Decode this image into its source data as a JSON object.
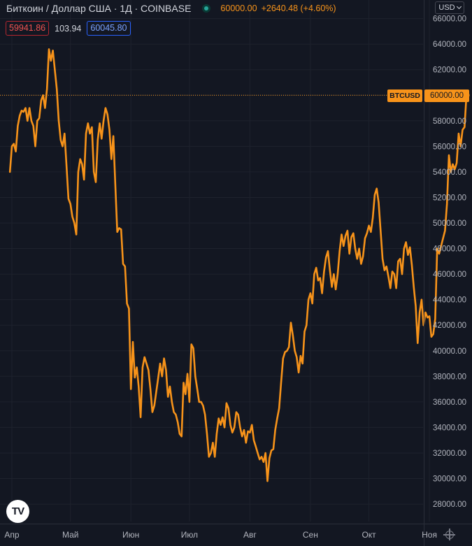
{
  "header": {
    "symbol_title": "Биткоин / Доллар США · 1Д · COINBASE",
    "last_price": "60000.00",
    "change": "+2640.48 (+4.60%)"
  },
  "indicators": {
    "bid": "59941.86",
    "spread": "103.94",
    "ask": "60045.80"
  },
  "controls": {
    "currency": "USD"
  },
  "price_tag": {
    "symbol": "BTCUSD",
    "price": "60000.00"
  },
  "brand": {
    "logo_text": "TV"
  },
  "colors": {
    "background": "#131722",
    "grid": "#1e222d",
    "line": "#f7931a",
    "axis_text": "#b2b5be"
  },
  "chart_data": {
    "type": "line",
    "title": "",
    "xlabel": "",
    "ylabel": "",
    "ylim": [
      26800,
      67400
    ],
    "grid": true,
    "y_ticks": [
      "28000.00",
      "30000.00",
      "32000.00",
      "34000.00",
      "36000.00",
      "38000.00",
      "40000.00",
      "42000.00",
      "44000.00",
      "46000.00",
      "48000.00",
      "50000.00",
      "52000.00",
      "54000.00",
      "56000.00",
      "58000.00",
      "60000.00",
      "62000.00",
      "64000.00",
      "66000.00"
    ],
    "x_ticks": [
      {
        "label": "Апр",
        "date": "2021-04-01"
      },
      {
        "label": "Май",
        "date": "2021-05-01"
      },
      {
        "label": "Июн",
        "date": "2021-06-01"
      },
      {
        "label": "Июл",
        "date": "2021-07-01"
      },
      {
        "label": "Авг",
        "date": "2021-08-01"
      },
      {
        "label": "Сен",
        "date": "2021-09-01"
      },
      {
        "label": "Окт",
        "date": "2021-10-01"
      },
      {
        "label": "Ноя",
        "date": "2021-11-01"
      }
    ],
    "series": [
      {
        "color": "#f7931a",
        "points": [
          [
            "2021-03-31",
            54000
          ],
          [
            "2021-04-01",
            56000
          ],
          [
            "2021-04-02",
            56200
          ],
          [
            "2021-04-03",
            55600
          ],
          [
            "2021-04-04",
            57600
          ],
          [
            "2021-04-05",
            58400
          ],
          [
            "2021-04-06",
            58800
          ],
          [
            "2021-04-07",
            58700
          ],
          [
            "2021-04-08",
            59000
          ],
          [
            "2021-04-09",
            58000
          ],
          [
            "2021-04-10",
            59000
          ],
          [
            "2021-04-11",
            58000
          ],
          [
            "2021-04-12",
            57600
          ],
          [
            "2021-04-13",
            56000
          ],
          [
            "2021-04-14",
            58000
          ],
          [
            "2021-04-15",
            58200
          ],
          [
            "2021-04-16",
            59600
          ],
          [
            "2021-04-17",
            60000
          ],
          [
            "2021-04-18",
            59000
          ],
          [
            "2021-04-19",
            60500
          ],
          [
            "2021-04-20",
            63600
          ],
          [
            "2021-04-21",
            62700
          ],
          [
            "2021-04-22",
            63500
          ],
          [
            "2021-04-23",
            62000
          ],
          [
            "2021-04-24",
            60500
          ],
          [
            "2021-04-25",
            58000
          ],
          [
            "2021-04-26",
            56500
          ],
          [
            "2021-04-27",
            56000
          ],
          [
            "2021-04-28",
            57000
          ],
          [
            "2021-04-29",
            54500
          ],
          [
            "2021-04-30",
            51900
          ],
          [
            "2021-05-01",
            51500
          ],
          [
            "2021-05-02",
            50500
          ],
          [
            "2021-05-03",
            50000
          ],
          [
            "2021-05-04",
            49100
          ],
          [
            "2021-05-05",
            54000
          ],
          [
            "2021-05-06",
            55000
          ],
          [
            "2021-05-07",
            54600
          ],
          [
            "2021-05-08",
            53400
          ],
          [
            "2021-05-09",
            57000
          ],
          [
            "2021-05-10",
            57800
          ],
          [
            "2021-05-11",
            57000
          ],
          [
            "2021-05-12",
            57500
          ],
          [
            "2021-05-13",
            54000
          ],
          [
            "2021-05-14",
            53200
          ],
          [
            "2021-05-15",
            56500
          ],
          [
            "2021-05-16",
            57800
          ],
          [
            "2021-05-17",
            56600
          ],
          [
            "2021-05-18",
            58000
          ],
          [
            "2021-05-19",
            59000
          ],
          [
            "2021-05-20",
            58500
          ],
          [
            "2021-05-21",
            57300
          ],
          [
            "2021-05-22",
            55000
          ],
          [
            "2021-05-23",
            56800
          ],
          [
            "2021-05-24",
            53000
          ],
          [
            "2021-05-25",
            49300
          ],
          [
            "2021-05-26",
            49600
          ],
          [
            "2021-05-27",
            49500
          ],
          [
            "2021-05-28",
            46800
          ],
          [
            "2021-05-29",
            46600
          ],
          [
            "2021-05-30",
            43700
          ],
          [
            "2021-05-31",
            43300
          ],
          [
            "2021-06-01",
            37000
          ],
          [
            "2021-06-02",
            40700
          ],
          [
            "2021-06-03",
            37900
          ],
          [
            "2021-06-04",
            38700
          ],
          [
            "2021-06-05",
            37200
          ],
          [
            "2021-06-06",
            34800
          ],
          [
            "2021-06-07",
            38700
          ],
          [
            "2021-06-08",
            39500
          ],
          [
            "2021-06-09",
            39000
          ],
          [
            "2021-06-10",
            38500
          ],
          [
            "2021-06-11",
            37000
          ],
          [
            "2021-06-12",
            35200
          ],
          [
            "2021-06-13",
            35700
          ],
          [
            "2021-06-14",
            36800
          ],
          [
            "2021-06-15",
            37900
          ],
          [
            "2021-06-16",
            39000
          ],
          [
            "2021-06-17",
            38000
          ],
          [
            "2021-06-18",
            39400
          ],
          [
            "2021-06-19",
            38500
          ],
          [
            "2021-06-20",
            36400
          ],
          [
            "2021-06-21",
            37200
          ],
          [
            "2021-06-22",
            36000
          ],
          [
            "2021-06-23",
            35200
          ],
          [
            "2021-06-24",
            35000
          ],
          [
            "2021-06-25",
            34400
          ],
          [
            "2021-06-26",
            33500
          ],
          [
            "2021-06-27",
            33300
          ],
          [
            "2021-06-28",
            37500
          ],
          [
            "2021-06-29",
            36600
          ],
          [
            "2021-06-30",
            38200
          ],
          [
            "2021-07-01",
            36000
          ],
          [
            "2021-07-02",
            40500
          ],
          [
            "2021-07-03",
            40200
          ],
          [
            "2021-07-04",
            38000
          ],
          [
            "2021-07-05",
            37000
          ],
          [
            "2021-07-06",
            36000
          ],
          [
            "2021-07-07",
            36000
          ],
          [
            "2021-07-08",
            35700
          ],
          [
            "2021-07-09",
            35000
          ],
          [
            "2021-07-10",
            33500
          ],
          [
            "2021-07-11",
            31700
          ],
          [
            "2021-07-12",
            32000
          ],
          [
            "2021-07-13",
            32800
          ],
          [
            "2021-07-14",
            31700
          ],
          [
            "2021-07-15",
            33500
          ],
          [
            "2021-07-16",
            34700
          ],
          [
            "2021-07-17",
            34200
          ],
          [
            "2021-07-18",
            34800
          ],
          [
            "2021-07-19",
            34000
          ],
          [
            "2021-07-20",
            35900
          ],
          [
            "2021-07-21",
            35500
          ],
          [
            "2021-07-22",
            34200
          ],
          [
            "2021-07-23",
            33600
          ],
          [
            "2021-07-24",
            34000
          ],
          [
            "2021-07-25",
            35200
          ],
          [
            "2021-07-26",
            35000
          ],
          [
            "2021-07-27",
            34000
          ],
          [
            "2021-07-28",
            33300
          ],
          [
            "2021-07-29",
            33800
          ],
          [
            "2021-07-30",
            32800
          ],
          [
            "2021-07-31",
            33700
          ],
          [
            "2021-08-01",
            33600
          ],
          [
            "2021-08-02",
            34200
          ],
          [
            "2021-08-03",
            33000
          ],
          [
            "2021-08-04",
            32500
          ],
          [
            "2021-08-05",
            32000
          ],
          [
            "2021-08-06",
            31500
          ],
          [
            "2021-08-07",
            31700
          ],
          [
            "2021-08-08",
            31300
          ],
          [
            "2021-08-09",
            32000
          ],
          [
            "2021-08-10",
            29800
          ],
          [
            "2021-08-11",
            31600
          ],
          [
            "2021-08-12",
            32200
          ],
          [
            "2021-08-13",
            32300
          ],
          [
            "2021-08-14",
            33800
          ],
          [
            "2021-08-15",
            34700
          ],
          [
            "2021-08-16",
            35500
          ],
          [
            "2021-08-17",
            37500
          ],
          [
            "2021-08-18",
            39400
          ],
          [
            "2021-08-19",
            39900
          ],
          [
            "2021-08-20",
            40000
          ],
          [
            "2021-08-21",
            40300
          ],
          [
            "2021-08-22",
            42200
          ],
          [
            "2021-08-23",
            41200
          ],
          [
            "2021-08-24",
            40000
          ],
          [
            "2021-08-25",
            39500
          ],
          [
            "2021-08-26",
            38300
          ],
          [
            "2021-08-27",
            39600
          ],
          [
            "2021-08-28",
            39000
          ],
          [
            "2021-08-29",
            41500
          ],
          [
            "2021-08-30",
            42000
          ],
          [
            "2021-08-31",
            44000
          ],
          [
            "2021-09-01",
            44500
          ],
          [
            "2021-09-02",
            43700
          ],
          [
            "2021-09-03",
            46000
          ],
          [
            "2021-09-04",
            46500
          ],
          [
            "2021-09-05",
            45500
          ],
          [
            "2021-09-06",
            45700
          ],
          [
            "2021-09-07",
            44500
          ],
          [
            "2021-09-08",
            46200
          ],
          [
            "2021-09-09",
            47300
          ],
          [
            "2021-09-10",
            47800
          ],
          [
            "2021-09-11",
            46300
          ],
          [
            "2021-09-12",
            45000
          ],
          [
            "2021-09-13",
            46000
          ],
          [
            "2021-09-14",
            44800
          ],
          [
            "2021-09-15",
            46000
          ],
          [
            "2021-09-16",
            47800
          ],
          [
            "2021-09-17",
            49100
          ],
          [
            "2021-09-18",
            48200
          ],
          [
            "2021-09-19",
            49000
          ],
          [
            "2021-09-20",
            49400
          ],
          [
            "2021-09-21",
            47600
          ],
          [
            "2021-09-22",
            48900
          ],
          [
            "2021-09-23",
            49200
          ],
          [
            "2021-09-24",
            48000
          ],
          [
            "2021-09-25",
            47200
          ],
          [
            "2021-09-26",
            48000
          ],
          [
            "2021-09-27",
            46800
          ],
          [
            "2021-09-28",
            47400
          ],
          [
            "2021-09-29",
            48800
          ],
          [
            "2021-09-30",
            49200
          ],
          [
            "2021-10-01",
            49800
          ],
          [
            "2021-10-02",
            49300
          ],
          [
            "2021-10-03",
            50400
          ],
          [
            "2021-10-04",
            52200
          ],
          [
            "2021-10-05",
            52700
          ],
          [
            "2021-10-06",
            51600
          ],
          [
            "2021-10-07",
            49400
          ],
          [
            "2021-10-08",
            47200
          ],
          [
            "2021-10-09",
            46300
          ],
          [
            "2021-10-10",
            46600
          ],
          [
            "2021-10-11",
            45800
          ],
          [
            "2021-10-12",
            44900
          ],
          [
            "2021-10-13",
            46200
          ],
          [
            "2021-10-14",
            46000
          ],
          [
            "2021-10-15",
            44900
          ],
          [
            "2021-10-16",
            47000
          ],
          [
            "2021-10-17",
            47200
          ],
          [
            "2021-10-18",
            46000
          ],
          [
            "2021-10-19",
            48000
          ],
          [
            "2021-10-20",
            48500
          ],
          [
            "2021-10-21",
            47500
          ],
          [
            "2021-10-22",
            48100
          ],
          [
            "2021-10-23",
            46700
          ],
          [
            "2021-10-24",
            45000
          ],
          [
            "2021-10-25",
            43500
          ],
          [
            "2021-10-26",
            40600
          ],
          [
            "2021-10-27",
            43000
          ],
          [
            "2021-10-28",
            44000
          ],
          [
            "2021-10-29",
            42000
          ],
          [
            "2021-10-30",
            43000
          ],
          [
            "2021-10-31",
            42600
          ],
          [
            "2021-11-01",
            42700
          ],
          [
            "2021-11-02",
            41100
          ],
          [
            "2021-11-03",
            41300
          ],
          [
            "2021-11-04",
            42500
          ],
          [
            "2021-11-05",
            48000
          ],
          [
            "2021-11-06",
            47600
          ],
          [
            "2021-11-07",
            48200
          ],
          [
            "2021-11-08",
            48800
          ],
          [
            "2021-11-09",
            49400
          ],
          [
            "2021-11-10",
            51500
          ],
          [
            "2021-11-11",
            55300
          ],
          [
            "2021-11-12",
            54000
          ],
          [
            "2021-11-13",
            54600
          ],
          [
            "2021-11-14",
            54200
          ],
          [
            "2021-11-15",
            54700
          ],
          [
            "2021-11-16",
            57000
          ],
          [
            "2021-11-17",
            56000
          ],
          [
            "2021-11-18",
            57300
          ],
          [
            "2021-11-19",
            57500
          ],
          [
            "2021-11-20",
            60000
          ]
        ]
      }
    ]
  }
}
